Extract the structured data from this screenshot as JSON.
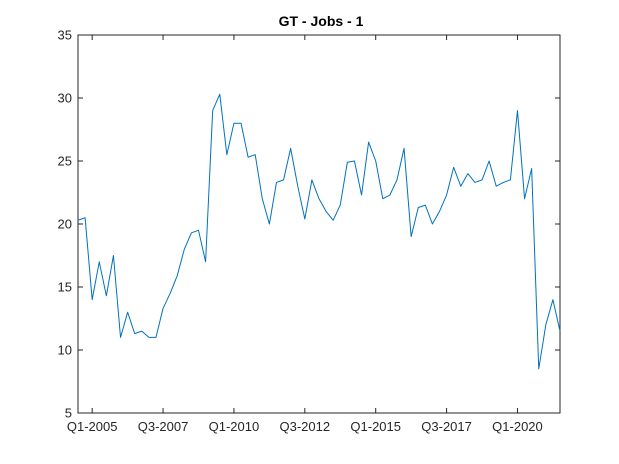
{
  "chart_data": {
    "type": "line",
    "title": "GT - Jobs - 1",
    "xlabel": "",
    "ylabel": "",
    "x_start": "Q3-2004",
    "x_frequency": "quarterly",
    "x_tick_labels": [
      "Q1-2005",
      "Q3-2007",
      "Q1-2010",
      "Q3-2012",
      "Q1-2015",
      "Q3-2017",
      "Q1-2020"
    ],
    "y_ticks": [
      5,
      10,
      15,
      20,
      25,
      30,
      35
    ],
    "ylim": [
      5,
      35
    ],
    "grid": false,
    "legend": "none",
    "series": [
      {
        "color": "#0072BD",
        "values": [
          20.3,
          20.5,
          14,
          17,
          14.3,
          17.5,
          11,
          13,
          11.3,
          11.5,
          11,
          11,
          13.3,
          14.5,
          15.9,
          18,
          19.3,
          19.5,
          17,
          29,
          30.3,
          25.5,
          28,
          28,
          25.3,
          25.5,
          22,
          20,
          23.3,
          23.5,
          26,
          23,
          20.4,
          23.5,
          22,
          21,
          20.3,
          21.5,
          24.9,
          25,
          22.3,
          26.5,
          25,
          22,
          22.3,
          23.5,
          26,
          19,
          21.3,
          21.5,
          20,
          21,
          22.3,
          24.5,
          23,
          24,
          23.3,
          23.5,
          25,
          23,
          23.3,
          23.5,
          29,
          22,
          24.4,
          8.5,
          12,
          14,
          11.5
        ]
      }
    ]
  }
}
